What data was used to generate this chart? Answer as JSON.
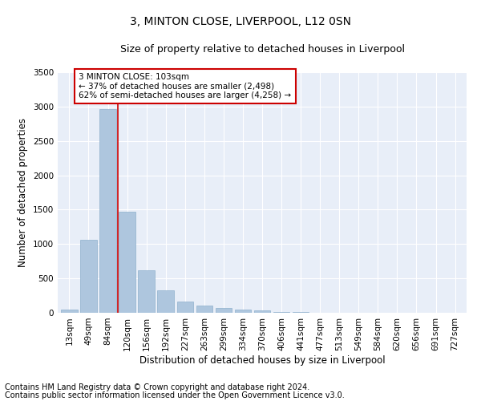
{
  "title": "3, MINTON CLOSE, LIVERPOOL, L12 0SN",
  "subtitle": "Size of property relative to detached houses in Liverpool",
  "xlabel": "Distribution of detached houses by size in Liverpool",
  "ylabel": "Number of detached properties",
  "categories": [
    "13sqm",
    "49sqm",
    "84sqm",
    "120sqm",
    "156sqm",
    "192sqm",
    "227sqm",
    "263sqm",
    "299sqm",
    "334sqm",
    "370sqm",
    "406sqm",
    "441sqm",
    "477sqm",
    "513sqm",
    "549sqm",
    "584sqm",
    "620sqm",
    "656sqm",
    "691sqm",
    "727sqm"
  ],
  "values": [
    50,
    1060,
    2960,
    1470,
    620,
    330,
    165,
    110,
    75,
    45,
    30,
    15,
    8,
    3,
    0,
    0,
    0,
    0,
    0,
    0,
    0
  ],
  "bar_color": "#aec6de",
  "bar_edge_color": "#8fb0cd",
  "vline_color": "#cc0000",
  "vline_x_pos": 2.5,
  "annotation_text": "3 MINTON CLOSE: 103sqm\n← 37% of detached houses are smaller (2,498)\n62% of semi-detached houses are larger (4,258) →",
  "annotation_box_color": "#ffffff",
  "annotation_box_edge": "#cc0000",
  "ylim": [
    0,
    3500
  ],
  "yticks": [
    0,
    500,
    1000,
    1500,
    2000,
    2500,
    3000,
    3500
  ],
  "background_color": "#e8eef8",
  "footer_line1": "Contains HM Land Registry data © Crown copyright and database right 2024.",
  "footer_line2": "Contains public sector information licensed under the Open Government Licence v3.0.",
  "title_fontsize": 10,
  "subtitle_fontsize": 9,
  "xlabel_fontsize": 8.5,
  "ylabel_fontsize": 8.5,
  "tick_fontsize": 7.5,
  "footer_fontsize": 7,
  "annot_fontsize": 7.5
}
